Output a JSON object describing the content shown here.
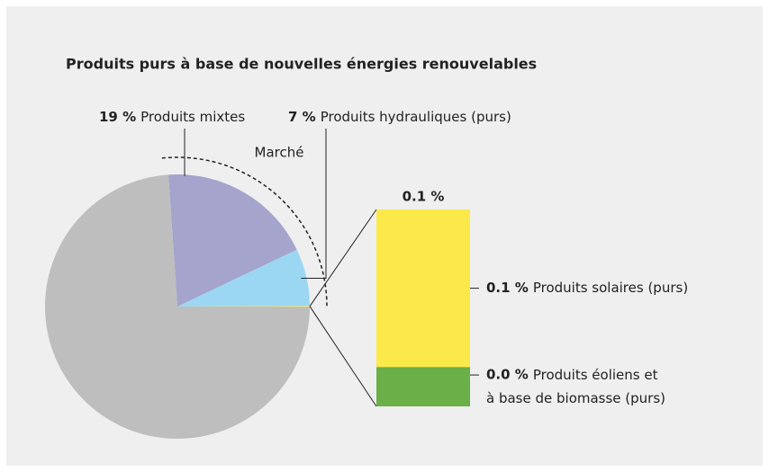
{
  "chart_data": [
    {
      "type": "pie",
      "title": "Produits purs à base de nouvelles énergies renouvelables",
      "categories": [
        "Produits mixtes",
        "Produits hydrauliques (purs)",
        null,
        null
      ],
      "values": [
        19,
        7,
        0.1,
        73.9
      ],
      "value_labels": [
        "19 %",
        "7 %",
        null,
        null
      ],
      "colors": [
        "#a4a4cd",
        "#9bd7f2",
        "#fbe94a",
        "#bebebe"
      ],
      "annotation": "Marché"
    },
    {
      "type": "stacked-bar",
      "series": [
        {
          "name": "Produits éoliens et\nà base de biomasse (purs)",
          "color": "#6aaf47",
          "values": [
            0.02
          ],
          "value_labels": [
            "0.0 %"
          ]
        },
        {
          "name": "Produits solaires (purs)",
          "color": "#fbe94a",
          "values": [
            0.08
          ],
          "value_labels": [
            "0.1 %"
          ]
        }
      ],
      "total_label": "0.1 %"
    }
  ]
}
